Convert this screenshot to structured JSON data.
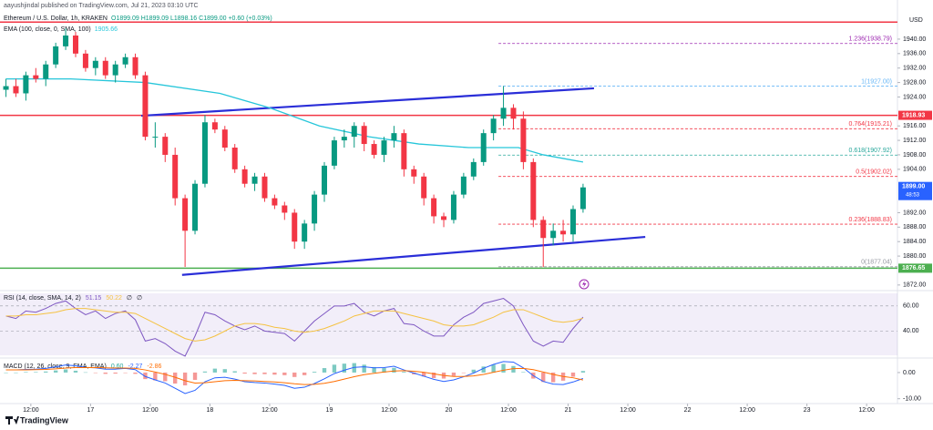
{
  "header": {
    "publisher": "aayushjindal published on TradingView.com, Jul 21, 2023 03:10 UTC",
    "footer": "TradingView"
  },
  "chart_data": [
    {
      "type": "candlestick",
      "title": "Ethereum / U.S. Dollar, 1h, KRAKEN",
      "ohlc_text": "O1899.09 H1899.09 L1898.16 C1899.00 +0.60 (+0.03%)",
      "y_axis_label": "USD",
      "up_color": "#089981",
      "down_color": "#f23645",
      "x": [
        7,
        9,
        11,
        13,
        15,
        17,
        19,
        21,
        23,
        25,
        27,
        29,
        31,
        33,
        35,
        37,
        39,
        41,
        43,
        45,
        47,
        49,
        51,
        53,
        55,
        57,
        59,
        61,
        63,
        65,
        67,
        69,
        71,
        73,
        75,
        77,
        79,
        81,
        83,
        85,
        87,
        89,
        91,
        93,
        95,
        97,
        99,
        101,
        103,
        105,
        107,
        109,
        111,
        113,
        115,
        117,
        119,
        121,
        123
      ],
      "open": [
        1926,
        1927,
        1925,
        1930,
        1929,
        1933,
        1938,
        1941,
        1936,
        1932,
        1934,
        1930,
        1933,
        1935,
        1930,
        1913,
        1913,
        1908,
        1896,
        1887,
        1900,
        1917,
        1915,
        1910,
        1904,
        1900,
        1902,
        1896,
        1894,
        1892,
        1884,
        1889,
        1897,
        1905,
        1912,
        1913,
        1916,
        1911,
        1908,
        1912,
        1914,
        1904,
        1902,
        1896,
        1891,
        1890,
        1897,
        1902,
        1906,
        1914,
        1918,
        1921,
        1918,
        1906,
        1890,
        1885,
        1887,
        1886,
        1893
      ],
      "high": [
        1929,
        1929,
        1931,
        1932,
        1934,
        1939,
        1943,
        1942,
        1937,
        1935,
        1935,
        1934,
        1936,
        1936,
        1931,
        1917,
        1914,
        1910,
        1897,
        1901,
        1919,
        1918,
        1916,
        1911,
        1905,
        1903,
        1903,
        1897,
        1895,
        1893,
        1890,
        1898,
        1906,
        1913,
        1915,
        1917,
        1917,
        1912,
        1913,
        1916,
        1915,
        1905,
        1903,
        1897,
        1892,
        1898,
        1903,
        1907,
        1915,
        1919,
        1927,
        1922,
        1920,
        1907,
        1891,
        1889,
        1890,
        1894,
        1900
      ],
      "low": [
        1924,
        1924,
        1923,
        1928,
        1927,
        1932,
        1937,
        1935,
        1931,
        1930,
        1929,
        1928,
        1932,
        1929,
        1912,
        1910,
        1906,
        1894,
        1877,
        1886,
        1899,
        1914,
        1909,
        1903,
        1899,
        1898,
        1895,
        1893,
        1890,
        1882,
        1882,
        1887,
        1895,
        1904,
        1910,
        1910,
        1909,
        1907,
        1906,
        1910,
        1902,
        1900,
        1894,
        1889,
        1888,
        1889,
        1896,
        1901,
        1905,
        1912,
        1916,
        1915,
        1904,
        1888,
        1877,
        1883,
        1884,
        1884,
        1892
      ],
      "close": [
        1927,
        1925,
        1930,
        1929,
        1933,
        1938,
        1941,
        1936,
        1932,
        1934,
        1930,
        1933,
        1935,
        1930,
        1913,
        1913,
        1908,
        1896,
        1887,
        1900,
        1917,
        1915,
        1910,
        1904,
        1900,
        1902,
        1896,
        1894,
        1892,
        1884,
        1889,
        1897,
        1905,
        1912,
        1913,
        1916,
        1911,
        1908,
        1912,
        1914,
        1904,
        1902,
        1896,
        1891,
        1890,
        1897,
        1902,
        1906,
        1914,
        1918,
        1921,
        1918,
        1906,
        1890,
        1885,
        1887,
        1886,
        1893,
        1899
      ],
      "series": [
        {
          "name": "EMA (100, close, 0, SMA, 100)",
          "color": "#26c6da",
          "last_value": 1905.66,
          "x": [
            7,
            20,
            35,
            50,
            60,
            70,
            80,
            90,
            100,
            110,
            115,
            123
          ],
          "values": [
            1929,
            1929,
            1928,
            1925,
            1921,
            1916,
            1913,
            1911,
            1910,
            1910,
            1908,
            1906
          ]
        }
      ],
      "xlim": [
        5.8,
        186.2
      ],
      "xticks": [
        {
          "value": 12,
          "label": "12:00"
        },
        {
          "value": 24,
          "label": "17"
        },
        {
          "value": 36,
          "label": "12:00"
        },
        {
          "value": 48,
          "label": "18"
        },
        {
          "value": 60,
          "label": "12:00"
        },
        {
          "value": 72,
          "label": "19"
        },
        {
          "value": 84,
          "label": "12:00"
        },
        {
          "value": 96,
          "label": "20"
        },
        {
          "value": 108,
          "label": "12:00"
        },
        {
          "value": 120,
          "label": "21"
        },
        {
          "value": 132,
          "label": "12:00"
        },
        {
          "value": 144,
          "label": "22"
        },
        {
          "value": 156,
          "label": "12:00"
        },
        {
          "value": 168,
          "label": "23"
        },
        {
          "value": 180,
          "label": "12:00"
        }
      ],
      "ylim": [
        1870.7,
        1948.3
      ],
      "yticks": [
        {
          "value": 1940,
          "label": "1940.00"
        },
        {
          "value": 1936,
          "label": "1936.00"
        },
        {
          "value": 1932,
          "label": "1932.00"
        },
        {
          "value": 1928,
          "label": "1928.00"
        },
        {
          "value": 1924,
          "label": "1924.00"
        },
        {
          "value": 1916,
          "label": "1916.00"
        },
        {
          "value": 1912,
          "label": "1912.00"
        },
        {
          "value": 1908,
          "label": "1908.00"
        },
        {
          "value": 1904,
          "label": "1904.00"
        },
        {
          "value": 1892,
          "label": "1892.00"
        },
        {
          "value": 1888,
          "label": "1888.00"
        },
        {
          "value": 1884,
          "label": "1884.00"
        },
        {
          "value": 1880,
          "label": "1880.00"
        },
        {
          "value": 1872,
          "label": "1872.00"
        }
      ],
      "horizontal_lines": [
        {
          "value": 1944.7,
          "color": "#f23645"
        },
        {
          "value": 1918.93,
          "color": "#f23645",
          "labeled": true
        },
        {
          "value": 1876.65,
          "color": "#4caf50",
          "labeled": true
        }
      ],
      "last_price": {
        "value": 1899,
        "label": "1899.00",
        "countdown": "48:53",
        "color": "#2962ff"
      },
      "trend_lines": [
        {
          "x": [
            34.2,
            125.2
          ],
          "values": [
            1918.8,
            1926.4
          ],
          "color": "#2a2ed8"
        },
        {
          "x": [
            42.4,
            135.5
          ],
          "values": [
            1874.8,
            1885.3
          ],
          "color": "#2a2ed8"
        }
      ],
      "fib_x_start": 106,
      "fib_levels": [
        {
          "value": 1938.79,
          "label": "1.236(1938.79)",
          "color": "#9c27b0"
        },
        {
          "value": 1927,
          "label": "1(1927.00)",
          "color": "#64b5f6"
        },
        {
          "value": 1915.21,
          "label": "0.764(1915.21)",
          "color": "#f23645"
        },
        {
          "value": 1907.92,
          "label": "0.618(1907.92)",
          "color": "#26a69a"
        },
        {
          "value": 1902.02,
          "label": "0.5(1902.02)",
          "color": "#f23645"
        },
        {
          "value": 1888.83,
          "label": "0.236(1888.83)",
          "color": "#f23645"
        },
        {
          "value": 1877.04,
          "label": "0(1877.04)",
          "color": "#9598a1"
        }
      ]
    },
    {
      "type": "line",
      "title": "RSI (14, close, SMA, 14, 2)",
      "legend_values": [
        "51.15",
        "50.22",
        "∅",
        "∅"
      ],
      "band_color": "rgba(126,87,194,0.1)",
      "x": [
        7,
        9,
        11,
        13,
        15,
        17,
        19,
        21,
        23,
        25,
        27,
        29,
        31,
        33,
        35,
        37,
        39,
        41,
        43,
        45,
        47,
        49,
        51,
        53,
        55,
        57,
        59,
        61,
        63,
        65,
        67,
        69,
        71,
        73,
        75,
        77,
        79,
        81,
        83,
        85,
        87,
        89,
        91,
        93,
        95,
        97,
        99,
        101,
        103,
        105,
        107,
        109,
        111,
        113,
        115,
        117,
        119,
        121,
        123
      ],
      "series": [
        {
          "color": "#7e57c2",
          "values": [
            52,
            50,
            56,
            55,
            58,
            62,
            64,
            58,
            53,
            56,
            50,
            54,
            56,
            49,
            32,
            34,
            30,
            24,
            20,
            36,
            55,
            53,
            48,
            44,
            41,
            44,
            40,
            39,
            38,
            32,
            40,
            48,
            54,
            60,
            60,
            62,
            55,
            52,
            56,
            58,
            46,
            45,
            40,
            36,
            36,
            45,
            51,
            55,
            62,
            64,
            66,
            60,
            45,
            32,
            28,
            32,
            31,
            42,
            51.15
          ]
        },
        {
          "color": "#f5c242",
          "values": [
            52,
            52,
            53,
            53,
            54,
            55,
            57,
            58,
            58,
            57,
            56,
            55,
            55,
            54,
            50,
            46,
            42,
            38,
            34,
            32,
            33,
            36,
            40,
            44,
            46,
            46,
            45,
            43,
            42,
            40,
            39,
            40,
            42,
            45,
            48,
            52,
            54,
            56,
            56,
            56,
            54,
            52,
            50,
            48,
            45,
            44,
            44,
            45,
            48,
            51,
            55,
            57,
            57,
            54,
            51,
            48,
            47,
            48,
            50.22
          ]
        }
      ],
      "ylim": [
        19.2,
        71.5
      ],
      "yticks": [
        {
          "value": 60,
          "label": "60.00"
        },
        {
          "value": 40,
          "label": "40.00"
        }
      ]
    },
    {
      "type": "macd",
      "title": "MACD (12, 26, close, 9, EMA, EMA)",
      "legend_values": [
        "0.60",
        "-2.27",
        "-2.86"
      ],
      "x": [
        7,
        9,
        11,
        13,
        15,
        17,
        19,
        21,
        23,
        25,
        27,
        29,
        31,
        33,
        35,
        37,
        39,
        41,
        43,
        45,
        47,
        49,
        51,
        53,
        55,
        57,
        59,
        61,
        63,
        65,
        67,
        69,
        71,
        73,
        75,
        77,
        79,
        81,
        83,
        85,
        87,
        89,
        91,
        93,
        95,
        97,
        99,
        101,
        103,
        105,
        107,
        109,
        111,
        113,
        115,
        117,
        119,
        121,
        123
      ],
      "histogram": {
        "up_color": "#26a69a",
        "down_color": "#ef5350",
        "values": [
          0,
          0,
          0.2,
          0.2,
          0.4,
          0.8,
          1.2,
          0.7,
          0.1,
          -0.1,
          -0.5,
          -0.4,
          -0.1,
          -0.5,
          -2.5,
          -3.0,
          -3.3,
          -4.2,
          -4.9,
          -2.8,
          0.4,
          1.5,
          1.3,
          0.5,
          -0.4,
          -0.6,
          -0.6,
          -0.8,
          -1.0,
          -1.7,
          -1.0,
          0.3,
          1.7,
          3.0,
          3.4,
          3.6,
          3.0,
          2.1,
          1.7,
          1.8,
          0.3,
          -0.7,
          -1.5,
          -2.1,
          -2.3,
          -1.3,
          -0.1,
          1.1,
          2.3,
          3.0,
          3.3,
          2.5,
          0.2,
          -2.3,
          -3.6,
          -3.7,
          -3.1,
          -1.6,
          0.6
        ]
      },
      "series": [
        {
          "color": "#2962ff",
          "values": [
            1.0,
            1.0,
            1.2,
            1.3,
            1.6,
            2.2,
            2.9,
            2.6,
            2.0,
            1.8,
            1.3,
            1.3,
            1.6,
            1.1,
            -1.5,
            -2.8,
            -4.0,
            -6.0,
            -8.0,
            -6.8,
            -3.5,
            -2.0,
            -1.8,
            -2.5,
            -3.5,
            -3.8,
            -4.0,
            -4.4,
            -4.9,
            -6.0,
            -5.6,
            -4.2,
            -2.4,
            -0.4,
            0.9,
            2.0,
            2.2,
            1.8,
            1.9,
            2.4,
            1.0,
            -0.2,
            -1.4,
            -2.6,
            -3.4,
            -2.8,
            -1.6,
            -0.2,
            1.6,
            3.1,
            4.2,
            4.0,
            1.8,
            -1.2,
            -3.4,
            -4.4,
            -4.6,
            -3.6,
            -2.27
          ]
        },
        {
          "color": "#ff6d00",
          "values": [
            1.0,
            1.0,
            1.0,
            1.1,
            1.2,
            1.4,
            1.7,
            1.9,
            1.9,
            1.9,
            1.8,
            1.7,
            1.7,
            1.6,
            1.0,
            0.2,
            -0.7,
            -1.8,
            -3.1,
            -4.0,
            -3.9,
            -3.5,
            -3.1,
            -3.0,
            -3.1,
            -3.2,
            -3.4,
            -3.6,
            -3.9,
            -4.3,
            -4.6,
            -4.5,
            -4.1,
            -3.4,
            -2.5,
            -1.6,
            -0.8,
            -0.3,
            0.2,
            0.6,
            0.7,
            0.5,
            0.1,
            -0.5,
            -1.1,
            -1.5,
            -1.5,
            -1.3,
            -0.7,
            0.1,
            0.9,
            1.5,
            1.6,
            1.1,
            0.2,
            -0.7,
            -1.5,
            -2.0,
            -2.86
          ]
        }
      ],
      "ylim": [
        -11.5,
        4.5
      ],
      "yticks": [
        {
          "value": 0,
          "label": "0.00"
        },
        {
          "value": -10,
          "label": "-10.00"
        }
      ]
    }
  ]
}
